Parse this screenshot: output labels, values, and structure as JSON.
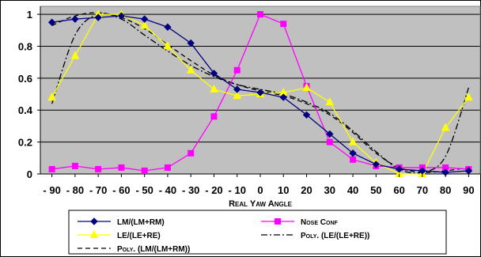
{
  "chart_data": {
    "type": "line",
    "title": "",
    "xlabel": "Real Yaw Angle",
    "ylabel": "",
    "x": [
      -90,
      -80,
      -70,
      -60,
      -50,
      -40,
      -30,
      -20,
      -10,
      0,
      10,
      20,
      30,
      40,
      50,
      60,
      70,
      80,
      90
    ],
    "x_tick_labels": [
      "- 90",
      "- 80",
      "- 70",
      "- 60",
      "- 50",
      "- 40",
      "- 30",
      "- 20",
      "- 10",
      "0",
      "10",
      "20",
      "30",
      "40",
      "50",
      "60",
      "70",
      "80",
      "90"
    ],
    "xlim": [
      -95,
      95
    ],
    "ylim": [
      0,
      1.05
    ],
    "y_ticks": [
      0,
      0.2,
      0.4,
      0.6,
      0.8,
      1
    ],
    "y_tick_labels": [
      "0",
      "0.2",
      "0.4",
      "0.6",
      "0.8",
      "1"
    ],
    "grid": "horizontal",
    "plot_background": "#c0c0c0",
    "legend_position": "bottom",
    "series": [
      {
        "name": "LM/(LM+RM)",
        "color": "#000080",
        "marker": "diamond",
        "line": "solid",
        "values": [
          0.95,
          0.97,
          0.98,
          0.99,
          0.97,
          0.92,
          0.82,
          0.63,
          0.53,
          0.51,
          0.48,
          0.37,
          0.25,
          0.13,
          0.06,
          0.03,
          0.02,
          0.01,
          0.02
        ]
      },
      {
        "name": "Nose Conf",
        "color": "#ff00ff",
        "marker": "square",
        "line": "solid",
        "values": [
          0.03,
          0.05,
          0.03,
          0.04,
          0.02,
          0.04,
          0.13,
          0.36,
          0.65,
          1.0,
          0.94,
          0.55,
          0.2,
          0.09,
          0.05,
          0.04,
          0.04,
          0.04,
          0.03
        ]
      },
      {
        "name": "LE/(LE+RE)",
        "color": "#ffff00",
        "marker": "triangle",
        "line": "solid",
        "values": [
          0.48,
          0.74,
          1.0,
          1.0,
          0.93,
          0.8,
          0.65,
          0.53,
          0.49,
          0.5,
          0.51,
          0.54,
          0.45,
          0.2,
          0.07,
          0.0,
          0.0,
          0.29,
          0.48
        ]
      },
      {
        "name": "Poly. (LE/(LE+RE))",
        "color": "#000000",
        "marker": "none",
        "line": "dashdot",
        "values": [
          0.44,
          0.87,
          1.0,
          0.97,
          0.87,
          0.77,
          0.68,
          0.61,
          0.56,
          0.53,
          0.5,
          0.45,
          0.38,
          0.27,
          0.14,
          0.03,
          0.01,
          0.11,
          0.54
        ]
      },
      {
        "name": "Poly. (LM/(LM+RM))",
        "color": "#000000",
        "marker": "none",
        "line": "dashed",
        "values": [
          0.93,
          0.99,
          1.01,
          0.98,
          0.91,
          0.81,
          0.71,
          0.62,
          0.56,
          0.52,
          0.49,
          0.44,
          0.37,
          0.26,
          0.13,
          0.04,
          0.01,
          0.02,
          0.04
        ]
      }
    ]
  }
}
